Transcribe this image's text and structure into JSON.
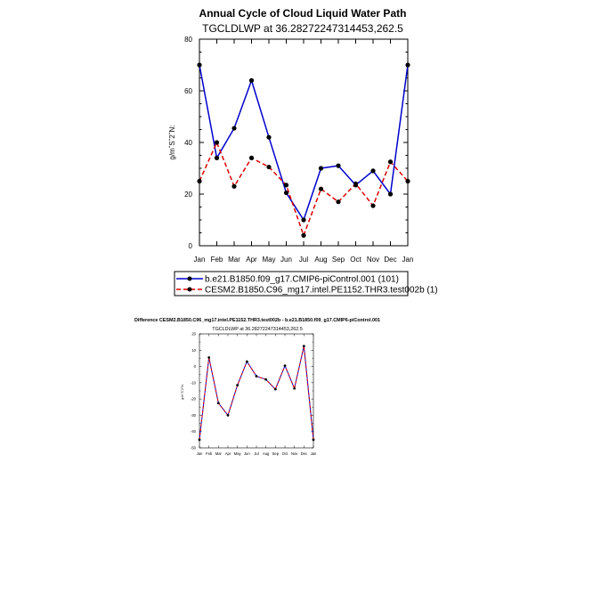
{
  "chart_data": [
    {
      "type": "line",
      "title": "Annual Cycle of Cloud Liquid Water Path",
      "subtitle": "TGCLDLWP at 36.28272247314453,262.5",
      "xlabel": "",
      "ylabel": "g/mˆSˆ2ˆN:",
      "ylim": [
        0,
        80
      ],
      "yticks": [
        "0",
        "20",
        "40",
        "60",
        "80"
      ],
      "categories": [
        "Jan",
        "Feb",
        "Mar",
        "Apr",
        "May",
        "Jun",
        "Jul",
        "Aug",
        "Sep",
        "Oct",
        "Nov",
        "Dec",
        "Jan"
      ],
      "series": [
        {
          "name": "b.e21.B1850.f09_g17.CMIP6-piControl.001 (101)",
          "color": "#0000cc",
          "style": "solid",
          "values": [
            70,
            34,
            45.5,
            64,
            42,
            20.5,
            10,
            30,
            31,
            23.5,
            29,
            20,
            70
          ]
        },
        {
          "name": "CESM2.B1850.C96_mg17.intel.PE1152.THR3.test002b (1)",
          "color": "#dd0000",
          "style": "dashed",
          "values": [
            25,
            40,
            23,
            34,
            30.5,
            23.5,
            4,
            22,
            17,
            24,
            15.5,
            32.5,
            25
          ]
        }
      ],
      "legend": "bottom"
    },
    {
      "type": "line",
      "title": "Difference CESM2.B1850.C96_mg17.intel.PE1152.THR3.test002b - b.e21.B1850.f09_g17.CMIP6-piControl.001",
      "subtitle": "TGCLDLWP at 36.28272247314453,262.5",
      "xlabel": "",
      "ylabel": "g/mˆSˆ2ˆN:",
      "ylim": [
        -50,
        20
      ],
      "yticks": [
        "-50",
        "-40",
        "-30",
        "-20",
        "-10",
        "0",
        "10",
        "20"
      ],
      "categories": [
        "Jan",
        "Feb",
        "Mar",
        "Apr",
        "May",
        "Jun",
        "Jul",
        "Aug",
        "Sep",
        "Oct",
        "Nov",
        "Dec",
        "Jan"
      ],
      "series": [
        {
          "name": "",
          "color": "#0000cc",
          "style": "solid",
          "values": [
            -45,
            5.5,
            -22.5,
            -30,
            -11.5,
            3,
            -6,
            -8,
            -14,
            0.5,
            -13.5,
            12.5,
            -45
          ]
        },
        {
          "name": "",
          "color": "#dd0000",
          "style": "dashed",
          "values": [
            -45,
            5.5,
            -22.5,
            -30,
            -11.5,
            3,
            -6,
            -8,
            -14,
            0.5,
            -13.5,
            12.5,
            -45
          ]
        }
      ]
    }
  ]
}
